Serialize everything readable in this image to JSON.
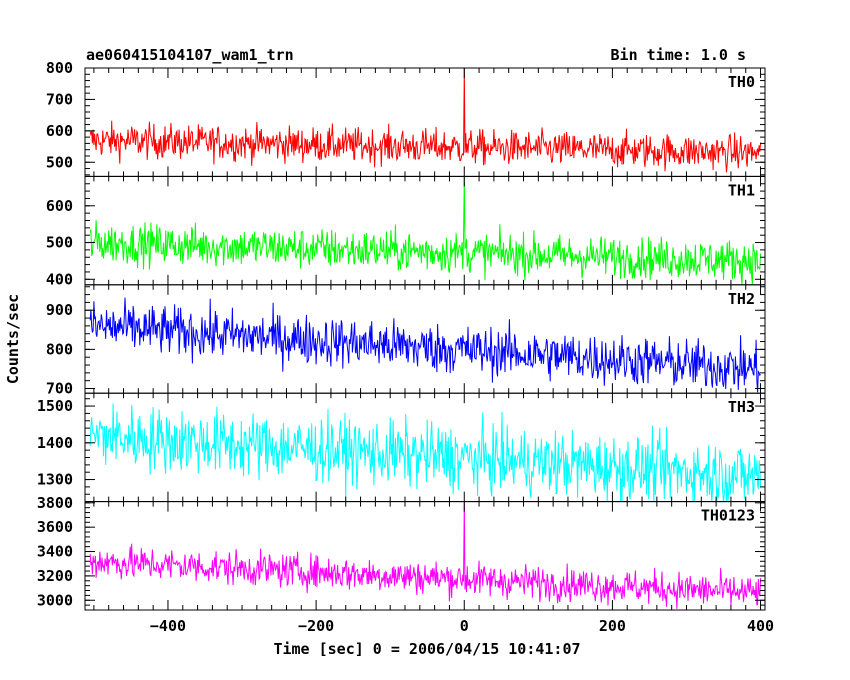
{
  "header": {
    "left": "ae060415104107_wam1_trn",
    "right": "Bin time: 1.0 s"
  },
  "chart_data": {
    "type": "line",
    "xlabel": "Time [sec] 0 = 2006/04/15 10:41:07",
    "ylabel": "Counts/sec",
    "xlim": [
      -512,
      406
    ],
    "xticks": [
      -400,
      -200,
      0,
      200,
      400
    ],
    "x_range": [
      -505,
      400
    ],
    "series": [
      {
        "name": "TH0",
        "color": "#ff0000",
        "ylim": [
          455,
          800
        ],
        "yticks": [
          500,
          600,
          700,
          800
        ],
        "start": 570,
        "end": 530,
        "noise": 28,
        "spike": 800
      },
      {
        "name": "TH1",
        "color": "#00ff00",
        "ylim": [
          385,
          680
        ],
        "yticks": [
          400,
          500,
          600
        ],
        "start": 500,
        "end": 450,
        "noise": 28,
        "spike": 680
      },
      {
        "name": "TH2",
        "color": "#0000ff",
        "ylim": [
          688,
          965
        ],
        "yticks": [
          700,
          800,
          900
        ],
        "start": 860,
        "end": 750,
        "noise": 32,
        "spike": null
      },
      {
        "name": "TH3",
        "color": "#00ffff",
        "ylim": [
          1240,
          1535
        ],
        "yticks": [
          1300,
          1400,
          1500
        ],
        "start": 1420,
        "end": 1310,
        "noise": 45,
        "spike": null
      },
      {
        "name": "TH0123",
        "color": "#ff00ff",
        "ylim": [
          2920,
          3810
        ],
        "yticks": [
          3000,
          3200,
          3400,
          3600,
          3800
        ],
        "start": 3320,
        "end": 3060,
        "noise": 70,
        "spike": 3810
      }
    ]
  }
}
